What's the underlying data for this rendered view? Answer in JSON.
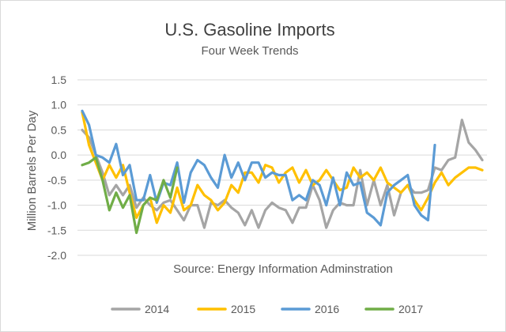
{
  "chart_data": {
    "type": "line",
    "title": "U.S. Gasoline Imports",
    "subtitle": "Four Week Trends",
    "ylabel": "Million Barrels Per Day",
    "source": "Source: Energy Information Adminstration",
    "ylim": [
      -2.0,
      1.5
    ],
    "yticks": [
      1.5,
      1.0,
      0.5,
      0.0,
      -0.5,
      -1.0,
      -1.5,
      -2.0
    ],
    "ytick_labels": [
      "1.5",
      "1.0",
      "0.5",
      "0.0",
      "-0.5",
      "-1.0",
      "-1.5",
      "-2.0"
    ],
    "xticks_shown": false,
    "grid": "horizontal",
    "legend_position": "bottom",
    "series": [
      {
        "name": "2014",
        "color": "#a5a5a5",
        "values": [
          0.5,
          0.35,
          0.0,
          -0.35,
          -0.8,
          -0.6,
          -0.8,
          -0.6,
          -1.05,
          -0.85,
          -1.0,
          -1.1,
          -0.95,
          -0.9,
          -1.1,
          -1.3,
          -1.0,
          -1.0,
          -1.45,
          -0.95,
          -1.0,
          -0.9,
          -1.05,
          -1.15,
          -1.4,
          -1.1,
          -1.45,
          -1.1,
          -0.95,
          -1.05,
          -1.1,
          -1.35,
          -1.05,
          -1.05,
          -0.6,
          -0.9,
          -1.45,
          -1.1,
          -0.95,
          -1.0,
          -1.0,
          -0.3,
          -1.0,
          -0.5,
          -1.0,
          -0.6,
          -1.2,
          -0.75,
          -0.6,
          -0.75,
          -0.75,
          -0.7,
          -0.25,
          -0.3,
          -0.1,
          -0.05,
          0.7,
          0.25,
          0.1,
          -0.1
        ]
      },
      {
        "name": "2015",
        "color": "#ffc000",
        "values": [
          0.85,
          0.2,
          -0.15,
          -0.5,
          -0.2,
          -0.45,
          -0.2,
          -0.75,
          -1.25,
          -1.0,
          -0.85,
          -1.35,
          -1.0,
          -1.15,
          -0.65,
          -1.1,
          -1.0,
          -0.6,
          -0.8,
          -0.9,
          -1.1,
          -0.95,
          -0.6,
          -0.75,
          -0.35,
          -0.35,
          -0.55,
          -0.2,
          -0.25,
          -0.55,
          -0.35,
          -0.25,
          -0.55,
          -0.3,
          -0.6,
          -0.5,
          -0.3,
          -0.5,
          -0.7,
          -0.65,
          -0.25,
          -0.45,
          -0.35,
          -0.5,
          -0.25,
          -0.55,
          -0.65,
          -0.75,
          -0.6,
          -0.9,
          -1.1,
          -0.85,
          -0.55,
          -0.35,
          -0.6,
          -0.45,
          -0.35,
          -0.25,
          -0.25,
          -0.3
        ]
      },
      {
        "name": "2016",
        "color": "#5b9bd5",
        "values": [
          0.88,
          0.6,
          0.0,
          -0.05,
          -0.15,
          0.22,
          -0.4,
          -0.2,
          -0.9,
          -0.9,
          -0.4,
          -0.95,
          -0.55,
          -0.6,
          -0.15,
          -0.95,
          -0.35,
          -0.1,
          -0.2,
          -0.45,
          -0.65,
          0.0,
          -0.45,
          -0.15,
          -0.5,
          -0.15,
          -0.15,
          -0.45,
          -0.35,
          -0.4,
          -0.4,
          -0.9,
          -0.8,
          -0.9,
          -0.5,
          -0.6,
          -1.0,
          -0.45,
          -1.0,
          -0.35,
          -0.6,
          -0.55,
          -1.15,
          -1.25,
          -1.4,
          -0.75,
          -0.6,
          -0.5,
          -0.4,
          -1.0,
          -1.2,
          -1.3,
          0.2
        ]
      },
      {
        "name": "2017",
        "color": "#70ad47",
        "values": [
          -0.2,
          -0.15,
          -0.05,
          -0.5,
          -1.1,
          -0.75,
          -1.05,
          -0.8,
          -1.55,
          -1.0,
          -0.85,
          -0.9,
          -0.5,
          -0.85,
          -0.25
        ]
      }
    ]
  }
}
